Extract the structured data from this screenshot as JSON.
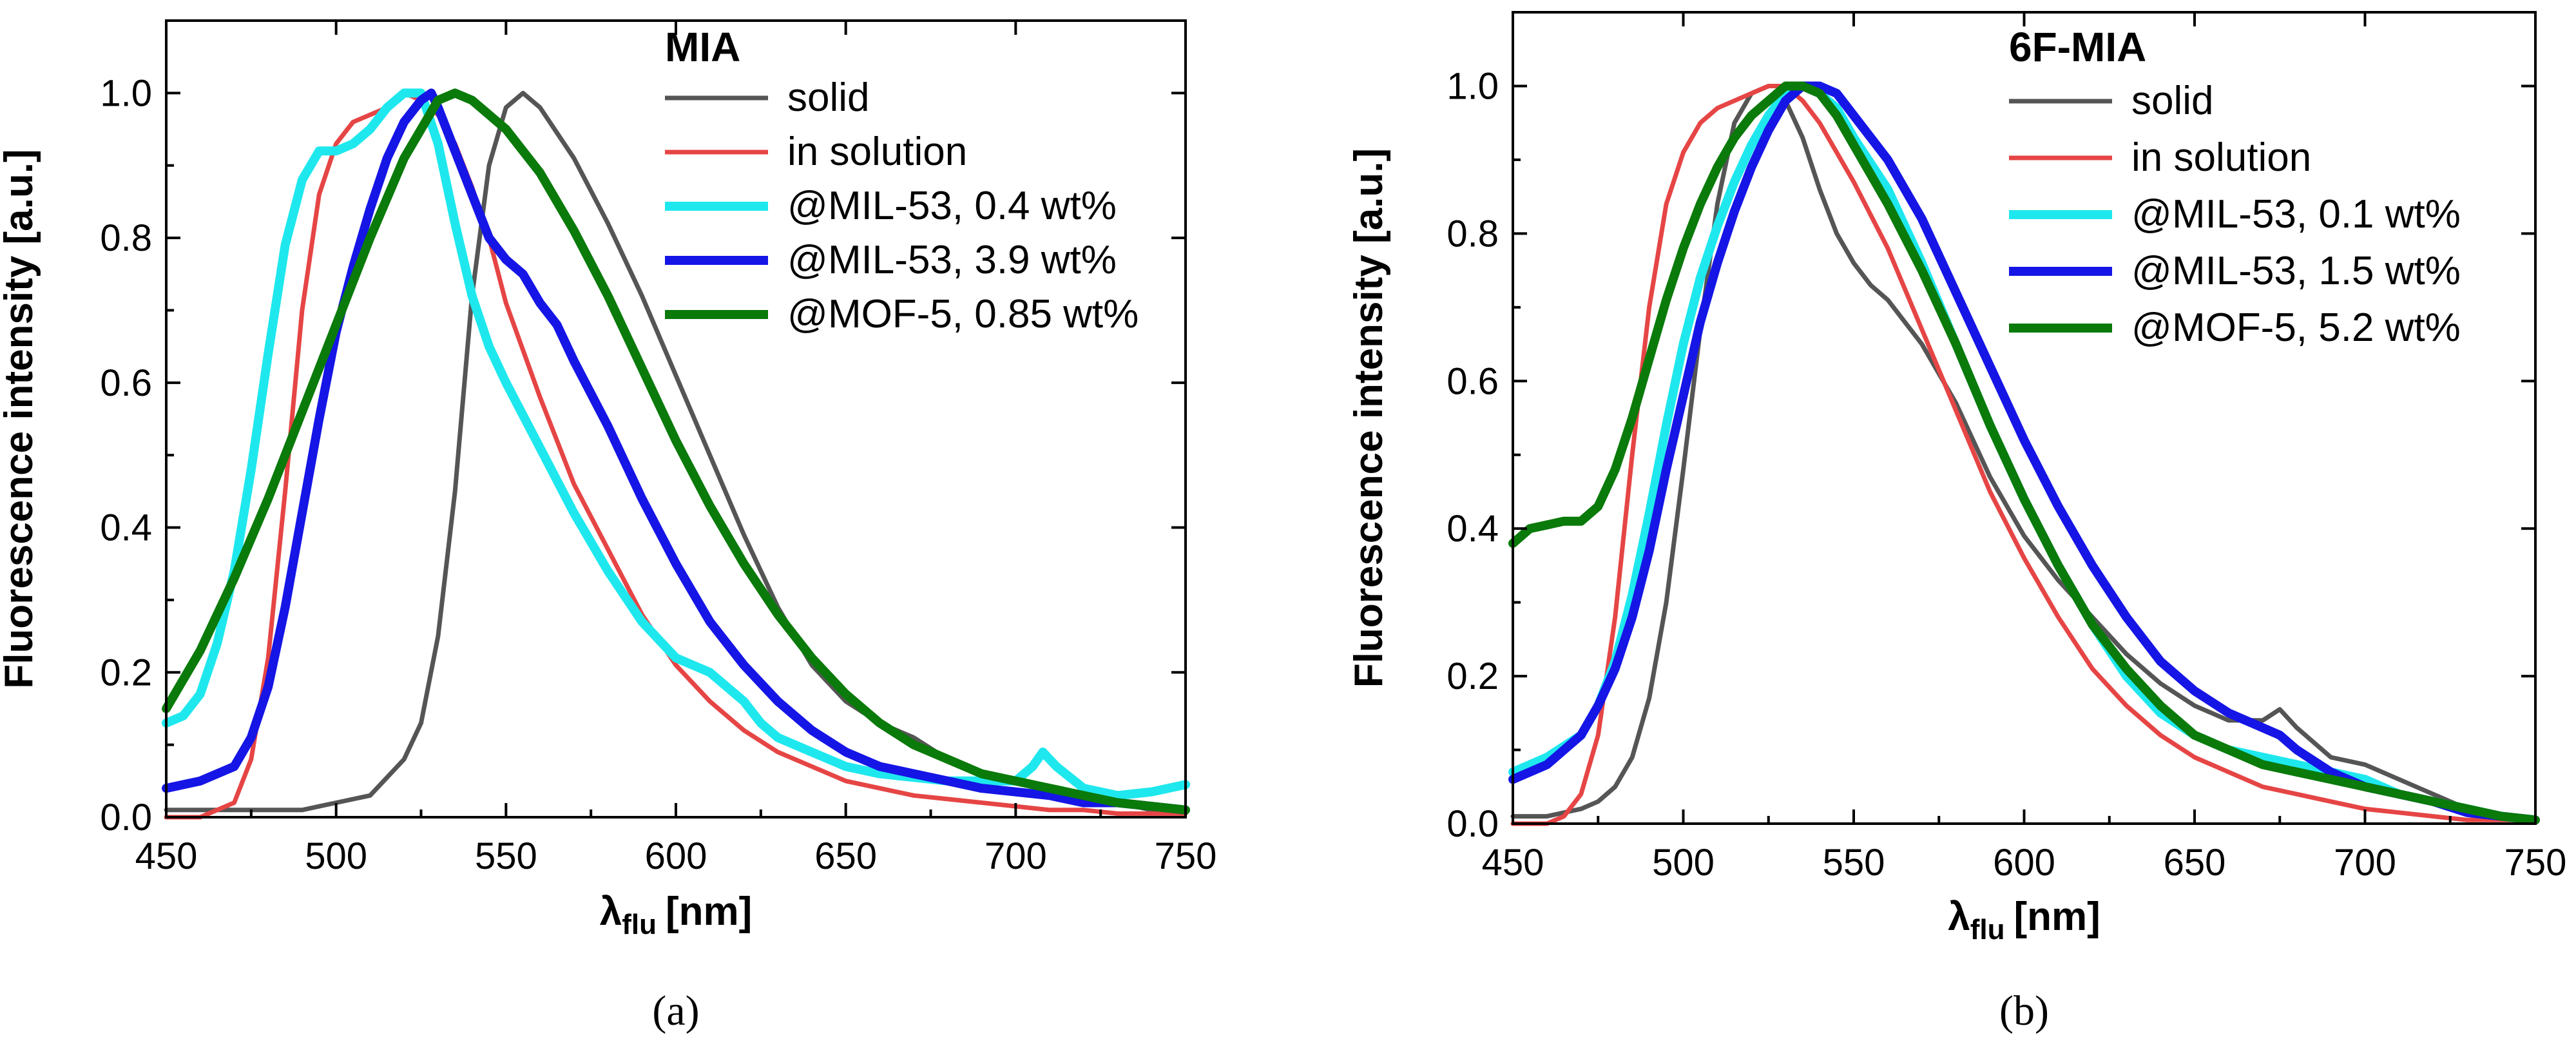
{
  "chart_data": [
    {
      "type": "line",
      "panel": "a",
      "title": "MIA",
      "caption": "(a)",
      "xlabel": "λ",
      "xlabel_sub": "flu",
      "xlabel_unit": "[nm]",
      "ylabel": "Fluorescence intensity [a.u.]",
      "xlim": [
        450,
        750
      ],
      "ylim": [
        0,
        1.1
      ],
      "xticks": [
        450,
        500,
        550,
        600,
        650,
        700,
        750
      ],
      "xtick_labels": [
        "450",
        "500",
        "550",
        "600",
        "650",
        "700",
        "750"
      ],
      "yticks": [
        0,
        0.2,
        0.4,
        0.6,
        0.8,
        1.0
      ],
      "ytick_labels": [
        "0.0",
        "0.2",
        "0.4",
        "0.6",
        "0.8",
        "1.0"
      ],
      "legend_position": "top-right",
      "series": [
        {
          "name": "solid",
          "color": "#555555",
          "width": "normal",
          "x": [
            450,
            470,
            490,
            500,
            510,
            520,
            525,
            530,
            535,
            540,
            545,
            550,
            555,
            560,
            570,
            580,
            590,
            600,
            610,
            620,
            630,
            640,
            650,
            660,
            670,
            680,
            690,
            700,
            710,
            720,
            730,
            740,
            750
          ],
          "y": [
            0.01,
            0.01,
            0.01,
            0.02,
            0.03,
            0.08,
            0.13,
            0.25,
            0.45,
            0.72,
            0.9,
            0.98,
            1.0,
            0.98,
            0.91,
            0.82,
            0.72,
            0.61,
            0.5,
            0.39,
            0.29,
            0.21,
            0.16,
            0.13,
            0.11,
            0.08,
            0.06,
            0.05,
            0.04,
            0.03,
            0.02,
            0.01,
            0.01
          ]
        },
        {
          "name": "in solution",
          "color": "#e64545",
          "width": "normal",
          "x": [
            450,
            460,
            470,
            475,
            480,
            485,
            490,
            495,
            500,
            505,
            510,
            515,
            520,
            525,
            530,
            535,
            540,
            545,
            550,
            560,
            570,
            580,
            590,
            600,
            610,
            620,
            630,
            640,
            650,
            660,
            670,
            680,
            690,
            700,
            710,
            720,
            730,
            740,
            750
          ],
          "y": [
            0.0,
            0.0,
            0.02,
            0.08,
            0.22,
            0.45,
            0.7,
            0.86,
            0.93,
            0.96,
            0.97,
            0.98,
            1.0,
            0.99,
            0.97,
            0.93,
            0.87,
            0.8,
            0.71,
            0.58,
            0.46,
            0.37,
            0.28,
            0.21,
            0.16,
            0.12,
            0.09,
            0.07,
            0.05,
            0.04,
            0.03,
            0.025,
            0.02,
            0.015,
            0.01,
            0.01,
            0.005,
            0.005,
            0.005
          ]
        },
        {
          "name": "@MIL-53, 0.4 wt%",
          "color": "#1ee8ee",
          "width": "thick",
          "x": [
            450,
            455,
            460,
            465,
            470,
            475,
            480,
            485,
            490,
            495,
            500,
            505,
            510,
            515,
            520,
            525,
            530,
            535,
            540,
            545,
            550,
            560,
            570,
            580,
            590,
            600,
            610,
            620,
            625,
            630,
            640,
            650,
            660,
            670,
            680,
            690,
            700,
            705,
            708,
            712,
            720,
            730,
            740,
            750
          ],
          "y": [
            0.13,
            0.14,
            0.17,
            0.24,
            0.34,
            0.48,
            0.64,
            0.79,
            0.88,
            0.92,
            0.92,
            0.93,
            0.95,
            0.98,
            1.0,
            1.0,
            0.93,
            0.82,
            0.72,
            0.65,
            0.6,
            0.51,
            0.42,
            0.34,
            0.27,
            0.22,
            0.2,
            0.16,
            0.13,
            0.11,
            0.09,
            0.07,
            0.06,
            0.055,
            0.05,
            0.05,
            0.05,
            0.07,
            0.09,
            0.07,
            0.04,
            0.03,
            0.035,
            0.045
          ]
        },
        {
          "name": "@MIL-53, 3.9 wt%",
          "color": "#1515e6",
          "width": "thick",
          "x": [
            450,
            460,
            470,
            475,
            480,
            485,
            490,
            495,
            500,
            505,
            510,
            515,
            520,
            525,
            528,
            530,
            535,
            540,
            545,
            550,
            555,
            560,
            565,
            570,
            580,
            590,
            600,
            610,
            620,
            630,
            640,
            650,
            660,
            670,
            680,
            690,
            700,
            710,
            720,
            730,
            740,
            750
          ],
          "y": [
            0.04,
            0.05,
            0.07,
            0.11,
            0.18,
            0.29,
            0.42,
            0.55,
            0.67,
            0.76,
            0.84,
            0.91,
            0.96,
            0.99,
            1.0,
            0.98,
            0.92,
            0.86,
            0.8,
            0.77,
            0.75,
            0.71,
            0.68,
            0.63,
            0.54,
            0.44,
            0.35,
            0.27,
            0.21,
            0.16,
            0.12,
            0.09,
            0.07,
            0.06,
            0.05,
            0.04,
            0.035,
            0.03,
            0.02,
            0.02,
            0.015,
            0.01
          ]
        },
        {
          "name": "@MOF-5, 0.85 wt%",
          "color": "#0a7a0a",
          "width": "thick",
          "x": [
            450,
            460,
            470,
            480,
            490,
            500,
            510,
            520,
            525,
            530,
            535,
            540,
            545,
            550,
            560,
            570,
            580,
            590,
            600,
            610,
            620,
            630,
            640,
            650,
            660,
            670,
            680,
            690,
            700,
            710,
            720,
            730,
            740,
            750
          ],
          "y": [
            0.15,
            0.23,
            0.33,
            0.44,
            0.56,
            0.68,
            0.8,
            0.91,
            0.95,
            0.99,
            1.0,
            0.99,
            0.97,
            0.95,
            0.89,
            0.81,
            0.72,
            0.62,
            0.52,
            0.43,
            0.35,
            0.28,
            0.22,
            0.17,
            0.13,
            0.1,
            0.08,
            0.06,
            0.05,
            0.04,
            0.03,
            0.02,
            0.015,
            0.01
          ]
        }
      ]
    },
    {
      "type": "line",
      "panel": "b",
      "title": "6F-MIA",
      "caption": "(b)",
      "xlabel": "λ",
      "xlabel_sub": "flu",
      "xlabel_unit": "[nm]",
      "ylabel": "Fluorescence intensity [a.u.]",
      "xlim": [
        450,
        750
      ],
      "ylim": [
        0,
        1.1
      ],
      "xticks": [
        450,
        500,
        550,
        600,
        650,
        700,
        750
      ],
      "xtick_labels": [
        "450",
        "500",
        "550",
        "600",
        "650",
        "700",
        "750"
      ],
      "yticks": [
        0,
        0.2,
        0.4,
        0.6,
        0.8,
        1.0
      ],
      "ytick_labels": [
        "0.0",
        "0.2",
        "0.4",
        "0.6",
        "0.8",
        "1.0"
      ],
      "legend_position": "top-right",
      "series": [
        {
          "name": "solid",
          "color": "#555555",
          "width": "normal",
          "x": [
            450,
            460,
            470,
            475,
            480,
            485,
            490,
            495,
            500,
            505,
            510,
            515,
            520,
            525,
            528,
            530,
            535,
            540,
            545,
            550,
            555,
            560,
            570,
            580,
            590,
            600,
            610,
            620,
            630,
            640,
            650,
            660,
            670,
            675,
            680,
            690,
            700,
            710,
            720,
            730,
            740,
            750
          ],
          "y": [
            0.01,
            0.01,
            0.02,
            0.03,
            0.05,
            0.09,
            0.17,
            0.3,
            0.48,
            0.67,
            0.84,
            0.95,
            0.99,
            1.0,
            1.0,
            0.98,
            0.93,
            0.86,
            0.8,
            0.76,
            0.73,
            0.71,
            0.65,
            0.57,
            0.47,
            0.39,
            0.33,
            0.28,
            0.23,
            0.19,
            0.16,
            0.14,
            0.14,
            0.155,
            0.13,
            0.09,
            0.08,
            0.06,
            0.04,
            0.02,
            0.01,
            0.005
          ]
        },
        {
          "name": "in solution",
          "color": "#e64545",
          "width": "normal",
          "x": [
            450,
            460,
            465,
            470,
            475,
            480,
            485,
            490,
            495,
            500,
            505,
            510,
            515,
            520,
            525,
            530,
            535,
            540,
            545,
            550,
            560,
            570,
            580,
            590,
            600,
            610,
            620,
            630,
            640,
            650,
            660,
            670,
            680,
            690,
            700,
            710,
            720,
            730,
            740,
            750
          ],
          "y": [
            0.0,
            0.0,
            0.01,
            0.04,
            0.12,
            0.28,
            0.5,
            0.7,
            0.84,
            0.91,
            0.95,
            0.97,
            0.98,
            0.99,
            1.0,
            1.0,
            0.98,
            0.95,
            0.91,
            0.87,
            0.78,
            0.67,
            0.56,
            0.45,
            0.36,
            0.28,
            0.21,
            0.16,
            0.12,
            0.09,
            0.07,
            0.05,
            0.04,
            0.03,
            0.02,
            0.015,
            0.01,
            0.005,
            0.005,
            0.005
          ]
        },
        {
          "name": "@MIL-53, 0.1 wt%",
          "color": "#1ee8ee",
          "width": "thick",
          "x": [
            450,
            460,
            470,
            475,
            480,
            485,
            490,
            495,
            500,
            505,
            510,
            515,
            520,
            525,
            530,
            535,
            540,
            545,
            550,
            560,
            570,
            580,
            590,
            600,
            610,
            620,
            630,
            640,
            650,
            660,
            670,
            680,
            690,
            700,
            710,
            720,
            730,
            740,
            750
          ],
          "y": [
            0.07,
            0.09,
            0.12,
            0.16,
            0.22,
            0.31,
            0.42,
            0.54,
            0.65,
            0.74,
            0.81,
            0.87,
            0.92,
            0.96,
            0.99,
            1.0,
            0.99,
            0.97,
            0.93,
            0.86,
            0.76,
            0.65,
            0.54,
            0.44,
            0.35,
            0.27,
            0.2,
            0.15,
            0.12,
            0.1,
            0.09,
            0.08,
            0.07,
            0.06,
            0.04,
            0.03,
            0.02,
            0.01,
            0.005
          ]
        },
        {
          "name": "@MIL-53, 1.5 wt%",
          "color": "#1515e6",
          "width": "thick",
          "x": [
            450,
            460,
            470,
            475,
            480,
            485,
            490,
            495,
            500,
            505,
            510,
            515,
            520,
            525,
            530,
            535,
            540,
            545,
            550,
            560,
            570,
            580,
            590,
            600,
            610,
            620,
            630,
            640,
            650,
            660,
            670,
            675,
            680,
            690,
            700,
            710,
            720,
            730,
            740,
            750
          ],
          "y": [
            0.06,
            0.08,
            0.12,
            0.16,
            0.21,
            0.28,
            0.37,
            0.48,
            0.58,
            0.68,
            0.76,
            0.83,
            0.89,
            0.94,
            0.98,
            1.0,
            1.0,
            0.99,
            0.96,
            0.9,
            0.82,
            0.72,
            0.62,
            0.52,
            0.43,
            0.35,
            0.28,
            0.22,
            0.18,
            0.15,
            0.13,
            0.12,
            0.1,
            0.07,
            0.05,
            0.04,
            0.03,
            0.015,
            0.01,
            0.005
          ]
        },
        {
          "name": "@MOF-5, 5.2 wt%",
          "color": "#0a7a0a",
          "width": "thick",
          "x": [
            450,
            455,
            460,
            465,
            470,
            475,
            480,
            485,
            490,
            495,
            500,
            505,
            510,
            515,
            520,
            525,
            530,
            535,
            540,
            545,
            550,
            560,
            570,
            580,
            590,
            600,
            610,
            620,
            630,
            640,
            650,
            660,
            670,
            680,
            690,
            700,
            710,
            720,
            730,
            740,
            750
          ],
          "y": [
            0.38,
            0.4,
            0.405,
            0.41,
            0.41,
            0.43,
            0.48,
            0.55,
            0.63,
            0.71,
            0.78,
            0.84,
            0.89,
            0.93,
            0.96,
            0.98,
            1.0,
            1.0,
            0.99,
            0.96,
            0.92,
            0.84,
            0.75,
            0.65,
            0.54,
            0.44,
            0.35,
            0.27,
            0.21,
            0.16,
            0.12,
            0.1,
            0.08,
            0.07,
            0.06,
            0.05,
            0.04,
            0.03,
            0.02,
            0.01,
            0.005
          ]
        }
      ]
    }
  ]
}
